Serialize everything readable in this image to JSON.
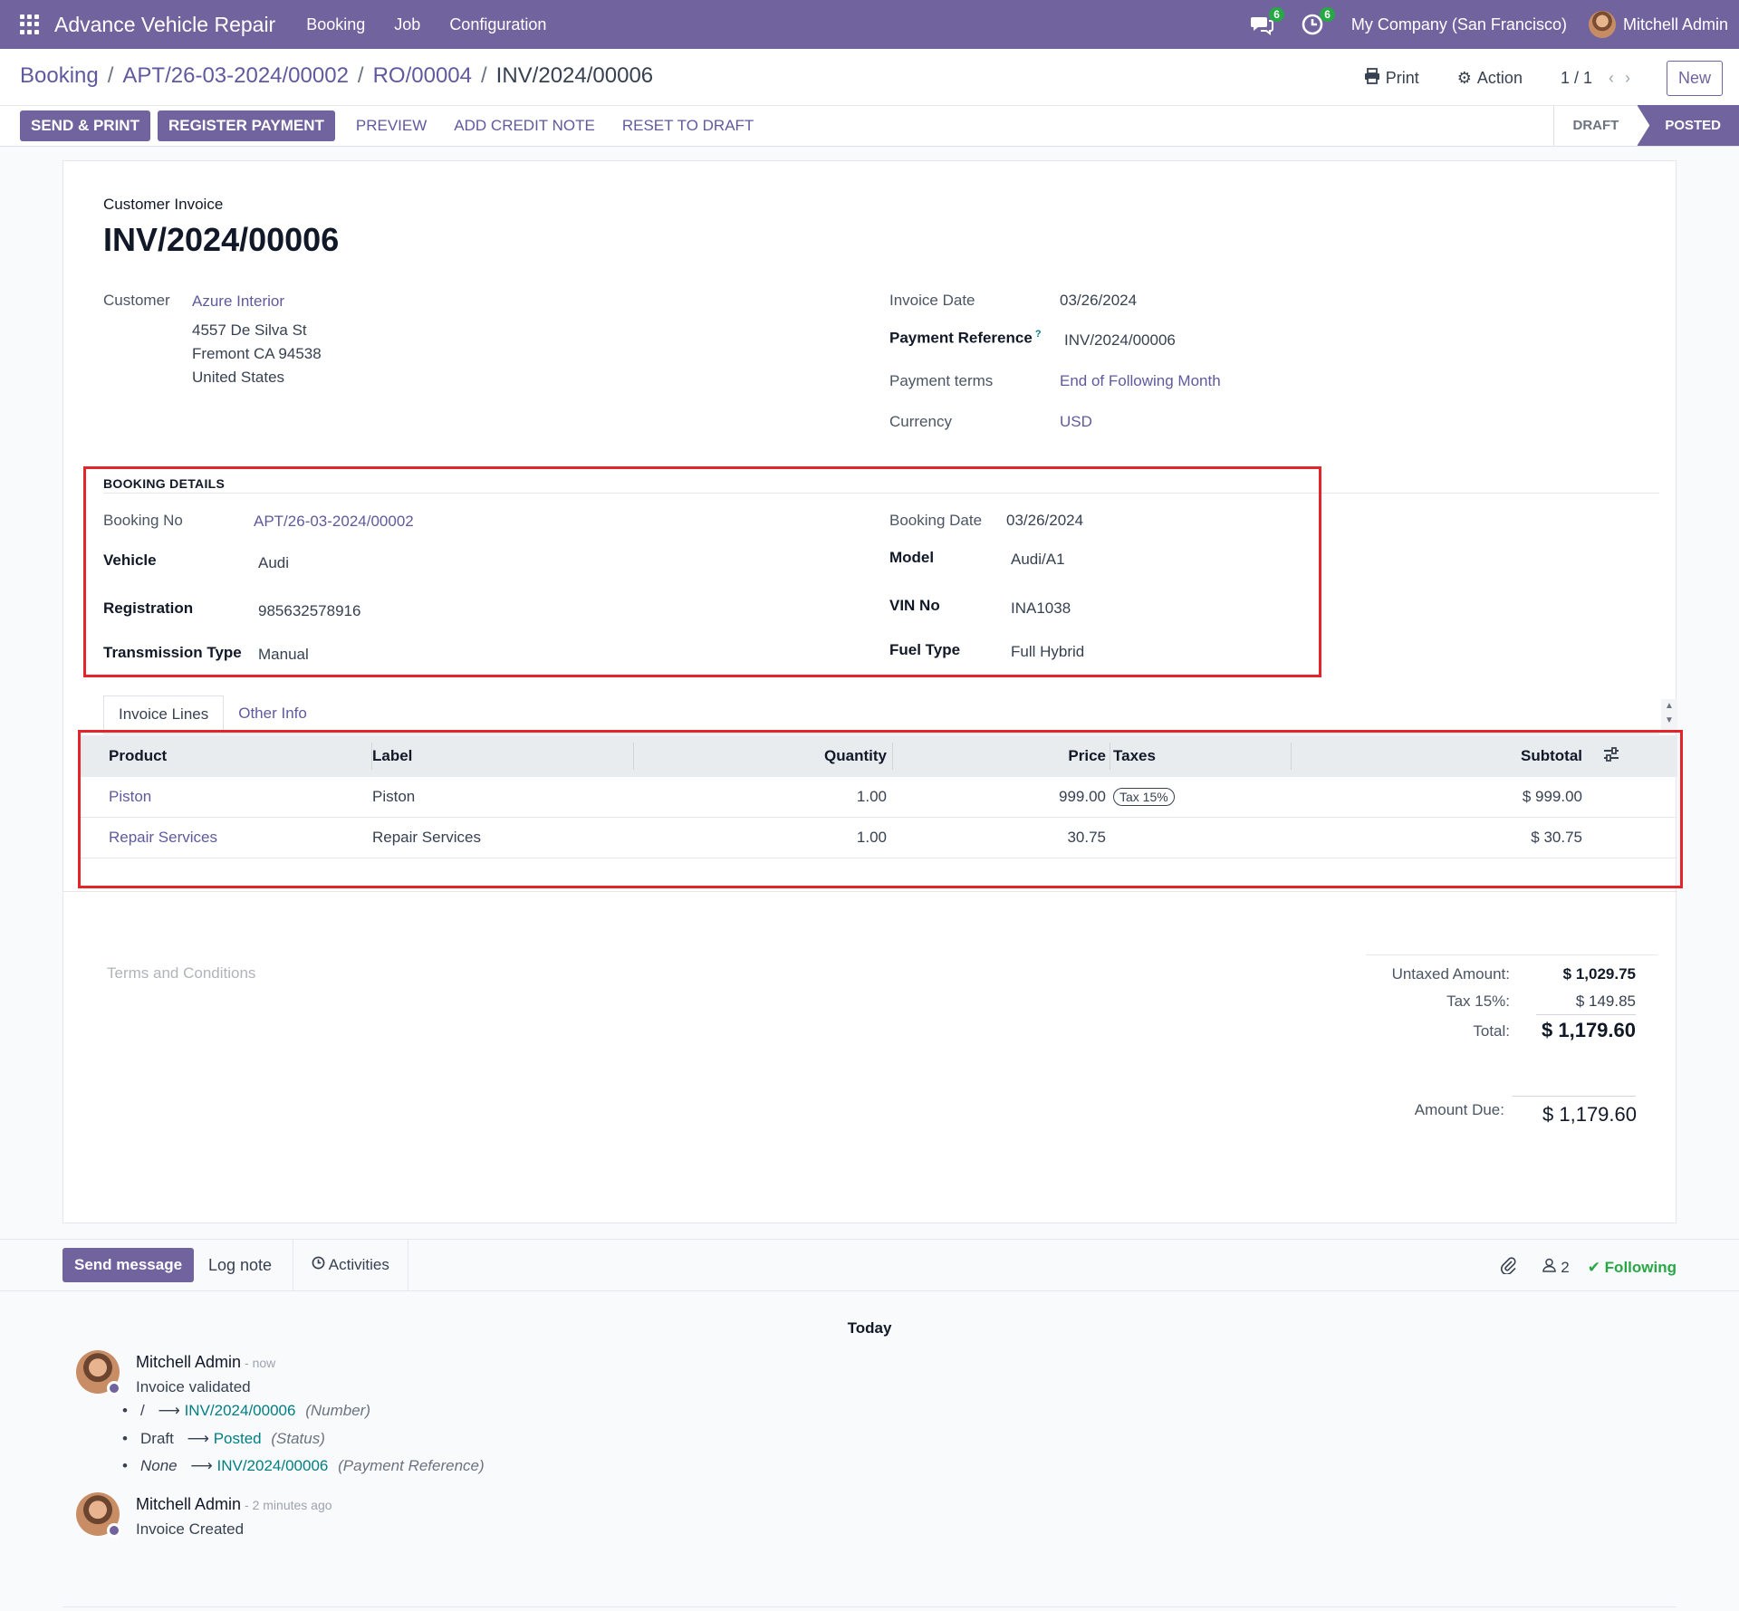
{
  "navbar": {
    "app_name": "Advance Vehicle Repair",
    "menu": [
      "Booking",
      "Job",
      "Configuration"
    ],
    "messages_count": "6",
    "activities_count": "6",
    "company": "My Company (San Francisco)",
    "user": "Mitchell Admin"
  },
  "breadcrumb": {
    "items": [
      "Booking",
      "APT/26-03-2024/00002",
      "RO/00004"
    ],
    "current": "INV/2024/00006"
  },
  "cp": {
    "print": "Print",
    "action": "Action",
    "pager": "1 / 1",
    "new": "New"
  },
  "buttons": {
    "send_print": "SEND & PRINT",
    "register_payment": "REGISTER PAYMENT",
    "preview": "PREVIEW",
    "add_credit_note": "ADD CREDIT NOTE",
    "reset_to_draft": "RESET TO DRAFT"
  },
  "status": {
    "draft": "DRAFT",
    "posted": "POSTED"
  },
  "invoice": {
    "type": "Customer Invoice",
    "name": "INV/2024/00006",
    "customer_label": "Customer",
    "customer": "Azure Interior",
    "address": [
      "4557 De Silva St",
      "Fremont CA 94538",
      "United States"
    ],
    "invoice_date_label": "Invoice Date",
    "invoice_date": "03/26/2024",
    "payment_ref_label": "Payment Reference",
    "payment_ref_help": "?",
    "payment_ref": "INV/2024/00006",
    "payment_terms_label": "Payment terms",
    "payment_terms": "End of Following Month",
    "currency_label": "Currency",
    "currency": "USD"
  },
  "booking": {
    "title": "BOOKING DETAILS",
    "booking_no_label": "Booking No",
    "booking_no": "APT/26-03-2024/00002",
    "booking_date_label": "Booking Date",
    "booking_date": "03/26/2024",
    "vehicle_label": "Vehicle",
    "vehicle": "Audi",
    "model_label": "Model",
    "model": "Audi/A1",
    "registration_label": "Registration",
    "registration": "985632578916",
    "vin_label": "VIN No",
    "vin": "INA1038",
    "transmission_label": "Transmission Type",
    "transmission": "Manual",
    "fuel_label": "Fuel Type",
    "fuel": "Full Hybrid"
  },
  "tabs": [
    "Invoice Lines",
    "Other Info"
  ],
  "lines": {
    "headers": {
      "product": "Product",
      "label": "Label",
      "quantity": "Quantity",
      "price": "Price",
      "taxes": "Taxes",
      "subtotal": "Subtotal"
    },
    "rows": [
      {
        "product": "Piston",
        "label": "Piston",
        "quantity": "1.00",
        "price": "999.00",
        "tax": "Tax 15%",
        "subtotal": "$ 999.00"
      },
      {
        "product": "Repair Services",
        "label": "Repair Services",
        "quantity": "1.00",
        "price": "30.75",
        "tax": "",
        "subtotal": "$ 30.75"
      }
    ]
  },
  "totals": {
    "terms_placeholder": "Terms and Conditions",
    "untaxed_label": "Untaxed Amount:",
    "untaxed": "$ 1,029.75",
    "tax_label": "Tax 15%:",
    "tax": "$ 149.85",
    "total_label": "Total:",
    "total": "$ 1,179.60",
    "due_label": "Amount Due:",
    "due": "$ 1,179.60"
  },
  "chatter": {
    "send_message": "Send message",
    "log_note": "Log note",
    "activities": "Activities",
    "followers": "2",
    "following": "Following",
    "today": "Today",
    "messages": [
      {
        "author": "Mitchell Admin",
        "time": "- now",
        "body": "Invoice validated",
        "tracking": [
          {
            "old": "/",
            "new": "INV/2024/00006",
            "field": "(Number)",
            "old_italic": false
          },
          {
            "old": "Draft",
            "new": "Posted",
            "field": "(Status)",
            "old_italic": false
          },
          {
            "old": "None",
            "new": "INV/2024/00006",
            "field": "(Payment Reference)",
            "old_italic": true
          }
        ]
      },
      {
        "author": "Mitchell Admin",
        "time": "- 2 minutes ago",
        "body": "Invoice Created"
      }
    ]
  }
}
